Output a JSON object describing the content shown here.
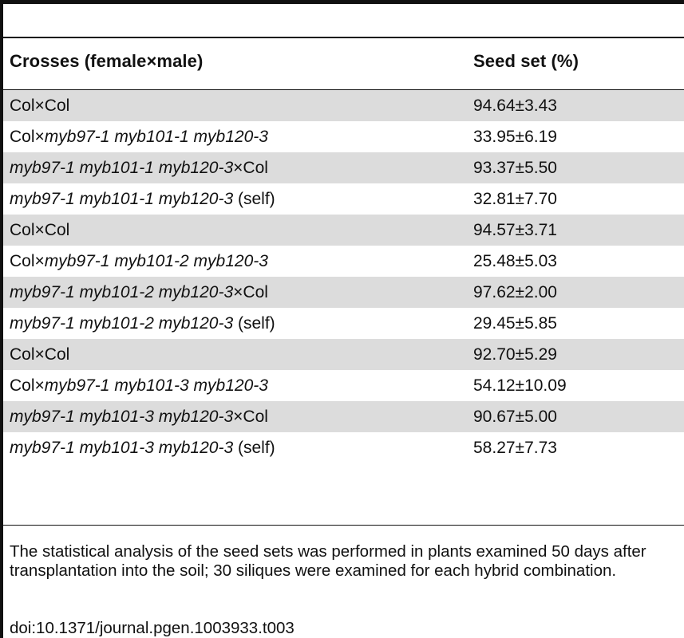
{
  "table": {
    "headers": {
      "crosses": "Crosses (female×male)",
      "seed_set": "Seed set (%)"
    },
    "rows": [
      {
        "cross": [
          {
            "t": "Col×Col",
            "i": false
          }
        ],
        "seed_set": "94.64±3.43",
        "shaded": true
      },
      {
        "cross": [
          {
            "t": "Col×",
            "i": false
          },
          {
            "t": "myb97-1 myb101-1 myb120-3",
            "i": true
          }
        ],
        "seed_set": "33.95±6.19",
        "shaded": false
      },
      {
        "cross": [
          {
            "t": "myb97-1 myb101-1 myb120-3",
            "i": true
          },
          {
            "t": "×Col",
            "i": false
          }
        ],
        "seed_set": "93.37±5.50",
        "shaded": true
      },
      {
        "cross": [
          {
            "t": "myb97-1 myb101-1 myb120-3",
            "i": true
          },
          {
            "t": " (self)",
            "i": false
          }
        ],
        "seed_set": "32.81±7.70",
        "shaded": false
      },
      {
        "cross": [
          {
            "t": "Col×Col",
            "i": false
          }
        ],
        "seed_set": "94.57±3.71",
        "shaded": true
      },
      {
        "cross": [
          {
            "t": "Col×",
            "i": false
          },
          {
            "t": "myb97-1 myb101-2 myb120-3",
            "i": true
          }
        ],
        "seed_set": "25.48±5.03",
        "shaded": false
      },
      {
        "cross": [
          {
            "t": "myb97-1 myb101-2 myb120-3",
            "i": true
          },
          {
            "t": "×Col",
            "i": false
          }
        ],
        "seed_set": "97.62±2.00",
        "shaded": true
      },
      {
        "cross": [
          {
            "t": "myb97-1 myb101-2 myb120-3",
            "i": true
          },
          {
            "t": " (self)",
            "i": false
          }
        ],
        "seed_set": "29.45±5.85",
        "shaded": false
      },
      {
        "cross": [
          {
            "t": "Col×Col",
            "i": false
          }
        ],
        "seed_set": "92.70±5.29",
        "shaded": true
      },
      {
        "cross": [
          {
            "t": "Col×",
            "i": false
          },
          {
            "t": "myb97-1 myb101-3 myb120-3",
            "i": true
          }
        ],
        "seed_set": "54.12±10.09",
        "shaded": false
      },
      {
        "cross": [
          {
            "t": "myb97-1 myb101-3 myb120-3",
            "i": true
          },
          {
            "t": "×Col",
            "i": false
          }
        ],
        "seed_set": "90.67±5.00",
        "shaded": true
      },
      {
        "cross": [
          {
            "t": "myb97-1 myb101-3 myb120-3",
            "i": true
          },
          {
            "t": " (self)",
            "i": false
          }
        ],
        "seed_set": "58.27±7.73",
        "shaded": false
      }
    ]
  },
  "footnote": "The statistical analysis of the seed sets was performed in plants examined 50 days after transplantation into the soil; 30 siliques were examined for each hybrid combination.",
  "doi": "doi:10.1371/journal.pgen.1003933.t003",
  "colors": {
    "row_shade": "#dcdcdc",
    "rule": "#111111",
    "text": "#111111"
  }
}
